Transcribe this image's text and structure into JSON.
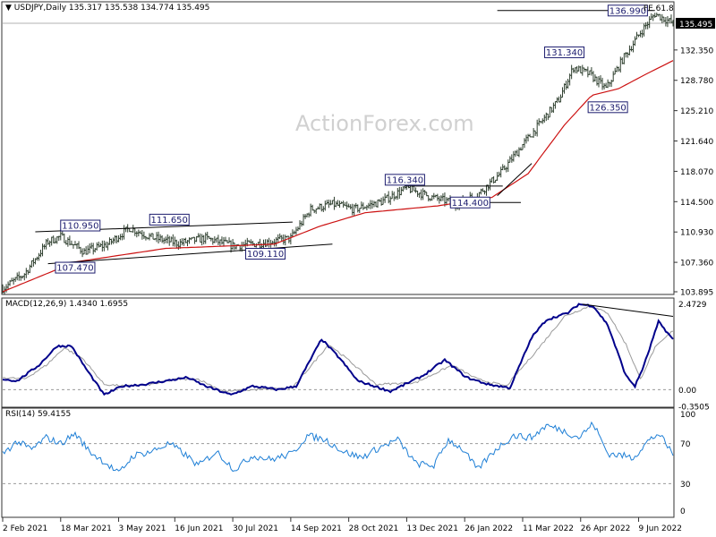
{
  "header": {
    "symbol": "USDJPY,Daily",
    "ohlc": "135.317 135.538 134.774 135.495"
  },
  "watermark": "ActionForex.com",
  "colors": {
    "candle": "#2e3f2e",
    "ma": "#cc1111",
    "annotation": "#1c1c6e",
    "macd_line": "#00008b",
    "macd_signal": "#9a9a9a",
    "rsi": "#1e7fd6",
    "grid": "#9a9a9a",
    "last_price_bg": "#000000"
  },
  "chart_data": [
    {
      "type": "candlestick",
      "name": "price",
      "ylim": [
        103.895,
        137.6
      ],
      "yticks": [
        "135.495",
        "132.350",
        "128.780",
        "125.210",
        "121.640",
        "118.070",
        "114.500",
        "110.930",
        "107.360",
        "103.895"
      ],
      "ytick_values": [
        135.495,
        132.35,
        128.78,
        125.21,
        121.64,
        118.07,
        114.5,
        110.93,
        107.36,
        103.895
      ],
      "last_price": 135.495,
      "xticks": [
        "2 Feb 2021",
        "18 Mar 2021",
        "3 May 2021",
        "16 Jun 2021",
        "30 Jul 2021",
        "14 Sep 2021",
        "28 Oct 2021",
        "13 Dec 2021",
        "26 Jan 2022",
        "11 Mar 2022",
        "26 Apr 2022",
        "9 Jun 2022"
      ],
      "xtick_index": [
        0,
        32,
        64,
        95,
        127,
        159,
        191,
        223,
        255,
        287,
        319,
        351
      ],
      "bars": 370,
      "close_path": [
        [
          0,
          104.3
        ],
        [
          12,
          106.0
        ],
        [
          25,
          109.8
        ],
        [
          32,
          110.4
        ],
        [
          45,
          108.6
        ],
        [
          58,
          109.5
        ],
        [
          70,
          111.4
        ],
        [
          82,
          110.3
        ],
        [
          97,
          109.6
        ],
        [
          112,
          110.2
        ],
        [
          127,
          109.3
        ],
        [
          142,
          109.6
        ],
        [
          159,
          110.2
        ],
        [
          170,
          113.6
        ],
        [
          182,
          114.2
        ],
        [
          194,
          113.6
        ],
        [
          209,
          114.5
        ],
        [
          223,
          116.1
        ],
        [
          237,
          115.0
        ],
        [
          250,
          114.3
        ],
        [
          262,
          115.3
        ],
        [
          275,
          117.9
        ],
        [
          287,
          121.2
        ],
        [
          297,
          123.8
        ],
        [
          307,
          126.5
        ],
        [
          315,
          130.3
        ],
        [
          324,
          129.5
        ],
        [
          333,
          127.8
        ],
        [
          342,
          131.2
        ],
        [
          352,
          134.4
        ],
        [
          360,
          136.6
        ],
        [
          370,
          135.495
        ]
      ],
      "moving_average": [
        [
          0,
          103.9
        ],
        [
          40,
          107.4
        ],
        [
          90,
          109.0
        ],
        [
          150,
          109.5
        ],
        [
          175,
          111.6
        ],
        [
          200,
          113.2
        ],
        [
          240,
          114.0
        ],
        [
          270,
          115.0
        ],
        [
          290,
          117.8
        ],
        [
          310,
          123.5
        ],
        [
          325,
          127.0
        ],
        [
          340,
          127.8
        ],
        [
          355,
          129.5
        ],
        [
          370,
          131.1
        ]
      ],
      "price_labels": [
        {
          "text": "110.950",
          "i": 32,
          "price": 110.95,
          "side": "left",
          "vpos": "above"
        },
        {
          "text": "107.470",
          "i": 40,
          "price": 107.47,
          "side": "center",
          "vpos": "below"
        },
        {
          "text": "111.650",
          "i": 92,
          "price": 111.65,
          "side": "center",
          "vpos": "above"
        },
        {
          "text": "109.110",
          "i": 145,
          "price": 109.11,
          "side": "center",
          "vpos": "below"
        },
        {
          "text": "116.340",
          "i": 222,
          "price": 116.34,
          "side": "center",
          "vpos": "above"
        },
        {
          "text": "114.400",
          "i": 258,
          "price": 114.4,
          "side": "center",
          "vpos": "at"
        },
        {
          "text": "131.340",
          "i": 310,
          "price": 131.34,
          "side": "center",
          "vpos": "above"
        },
        {
          "text": "126.350",
          "i": 334,
          "price": 126.35,
          "side": "center",
          "vpos": "below"
        },
        {
          "text": "136.990",
          "i": 345,
          "price": 136.99,
          "side": "center",
          "vpos": "at"
        }
      ],
      "extra_labels": [
        {
          "text": "FE 61.8",
          "i": 362,
          "price": 137.4
        }
      ],
      "trendlines": [
        {
          "from": [
            18,
            110.95
          ],
          "to": [
            160,
            112.1
          ]
        },
        {
          "from": [
            25,
            107.2
          ],
          "to": [
            182,
            109.5
          ]
        },
        {
          "from": [
            222,
            116.34
          ],
          "to": [
            276,
            116.34
          ]
        },
        {
          "from": [
            250,
            114.4
          ],
          "to": [
            286,
            114.4
          ]
        },
        {
          "from": [
            273,
            115.2
          ],
          "to": [
            292,
            119.0
          ]
        },
        {
          "from": [
            273,
            136.99
          ],
          "to": [
            360,
            136.99
          ]
        }
      ]
    },
    {
      "type": "line",
      "name": "macd",
      "title": "MACD(12,26,9) 1.4340 1.6955",
      "yticks": [
        "2.4729",
        "0.00",
        "-0.3505"
      ],
      "ytick_values": [
        2.4729,
        0.0,
        -0.3505
      ],
      "ylim": [
        -0.3505,
        2.4729
      ],
      "series": [
        {
          "role": "macd",
          "path": [
            [
              0,
              0.3
            ],
            [
              8,
              0.25
            ],
            [
              20,
              0.7
            ],
            [
              30,
              1.25
            ],
            [
              38,
              1.25
            ],
            [
              46,
              0.6
            ],
            [
              56,
              -0.15
            ],
            [
              66,
              0.1
            ],
            [
              78,
              0.15
            ],
            [
              90,
              0.25
            ],
            [
              102,
              0.35
            ],
            [
              112,
              0.1
            ],
            [
              126,
              -0.15
            ],
            [
              138,
              0.1
            ],
            [
              152,
              0.0
            ],
            [
              162,
              0.1
            ],
            [
              176,
              1.45
            ],
            [
              186,
              0.9
            ],
            [
              196,
              0.25
            ],
            [
              214,
              -0.05
            ],
            [
              232,
              0.4
            ],
            [
              244,
              0.85
            ],
            [
              256,
              0.35
            ],
            [
              268,
              0.15
            ],
            [
              280,
              0.05
            ],
            [
              292,
              1.5
            ],
            [
              300,
              2.0
            ],
            [
              312,
              2.2
            ],
            [
              318,
              2.45
            ],
            [
              326,
              2.4
            ],
            [
              334,
              1.85
            ],
            [
              344,
              0.4
            ],
            [
              349,
              0.1
            ],
            [
              354,
              0.7
            ],
            [
              362,
              1.95
            ],
            [
              370,
              1.434
            ]
          ]
        },
        {
          "role": "signal",
          "path": [
            [
              0,
              0.35
            ],
            [
              12,
              0.3
            ],
            [
              24,
              0.7
            ],
            [
              34,
              1.2
            ],
            [
              44,
              0.9
            ],
            [
              56,
              0.15
            ],
            [
              68,
              0.1
            ],
            [
              82,
              0.15
            ],
            [
              96,
              0.3
            ],
            [
              108,
              0.3
            ],
            [
              122,
              -0.05
            ],
            [
              140,
              0.0
            ],
            [
              160,
              0.05
            ],
            [
              180,
              1.3
            ],
            [
              192,
              0.8
            ],
            [
              206,
              0.15
            ],
            [
              228,
              0.2
            ],
            [
              248,
              0.7
            ],
            [
              262,
              0.3
            ],
            [
              278,
              0.1
            ],
            [
              296,
              1.2
            ],
            [
              310,
              2.1
            ],
            [
              324,
              2.4
            ],
            [
              334,
              2.2
            ],
            [
              344,
              1.3
            ],
            [
              352,
              0.3
            ],
            [
              360,
              1.2
            ],
            [
              370,
              1.6955
            ]
          ]
        }
      ],
      "trendline": {
        "from": [
          320,
          2.45
        ],
        "to": [
          370,
          2.1
        ]
      }
    },
    {
      "type": "line",
      "name": "rsi",
      "title": "RSI(14) 59.4155",
      "ylim": [
        0,
        100
      ],
      "yticks": [
        "100",
        "70",
        "30",
        "0"
      ],
      "ytick_values": [
        100,
        70,
        30,
        0
      ],
      "levels": [
        70,
        30
      ],
      "path": [
        [
          0,
          60
        ],
        [
          8,
          72
        ],
        [
          16,
          64
        ],
        [
          24,
          76
        ],
        [
          32,
          70
        ],
        [
          40,
          80
        ],
        [
          48,
          62
        ],
        [
          56,
          52
        ],
        [
          64,
          40
        ],
        [
          72,
          58
        ],
        [
          82,
          62
        ],
        [
          92,
          70
        ],
        [
          100,
          60
        ],
        [
          108,
          48
        ],
        [
          118,
          62
        ],
        [
          128,
          44
        ],
        [
          138,
          58
        ],
        [
          148,
          54
        ],
        [
          160,
          60
        ],
        [
          168,
          78
        ],
        [
          178,
          74
        ],
        [
          188,
          62
        ],
        [
          198,
          56
        ],
        [
          208,
          66
        ],
        [
          218,
          74
        ],
        [
          228,
          50
        ],
        [
          238,
          48
        ],
        [
          246,
          74
        ],
        [
          254,
          64
        ],
        [
          262,
          44
        ],
        [
          272,
          64
        ],
        [
          282,
          78
        ],
        [
          292,
          76
        ],
        [
          300,
          88
        ],
        [
          308,
          84
        ],
        [
          318,
          76
        ],
        [
          326,
          90
        ],
        [
          334,
          60
        ],
        [
          342,
          58
        ],
        [
          348,
          56
        ],
        [
          356,
          72
        ],
        [
          362,
          80
        ],
        [
          370,
          59.4
        ]
      ]
    }
  ]
}
